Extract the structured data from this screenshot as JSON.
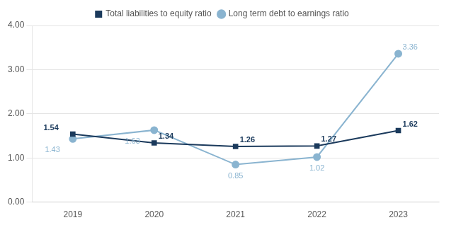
{
  "chart_data": {
    "type": "line",
    "categories": [
      "2019",
      "2020",
      "2021",
      "2022",
      "2023"
    ],
    "series": [
      {
        "name": "Long term debt to earnings ratio",
        "color": "#8ab4d0",
        "marker": "circle",
        "values": [
          1.43,
          1.63,
          0.85,
          1.02,
          3.36
        ]
      },
      {
        "name": "Total liabilities to equity ratio",
        "color": "#1b3a5c",
        "marker": "square",
        "values": [
          1.54,
          1.34,
          1.26,
          1.27,
          1.62
        ]
      }
    ],
    "ylim": [
      0.0,
      4.0
    ],
    "yticks": [
      {
        "value": 0.0,
        "label": "0.00"
      },
      {
        "value": 1.0,
        "label": "1.00"
      },
      {
        "value": 2.0,
        "label": "2.00"
      },
      {
        "value": 3.0,
        "label": "3.00"
      },
      {
        "value": 4.0,
        "label": "4.00"
      }
    ],
    "grid": true,
    "legend": "top",
    "data_labels": true
  }
}
